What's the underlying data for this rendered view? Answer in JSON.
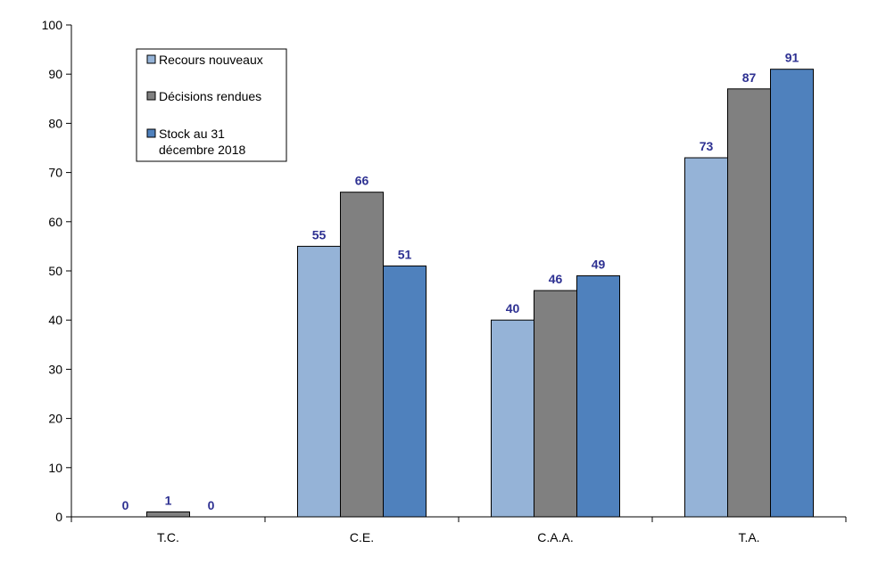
{
  "chart_data": {
    "type": "bar",
    "categories": [
      "T.C.",
      "C.E.",
      "C.A.A.",
      "T.A."
    ],
    "series": [
      {
        "name": "Recours nouveaux",
        "values": [
          0,
          55,
          40,
          73
        ],
        "color": "#95b3d7"
      },
      {
        "name": "Décisions rendues",
        "values": [
          1,
          66,
          46,
          87
        ],
        "color": "#808080"
      },
      {
        "name": "Stock au 31 décembre 2018",
        "name_lines": [
          "Stock au 31",
          "décembre 2018"
        ],
        "values": [
          0,
          51,
          49,
          91
        ],
        "color": "#4f81bd"
      }
    ],
    "ylim": [
      0,
      100
    ],
    "yticks": [
      0,
      10,
      20,
      30,
      40,
      50,
      60,
      70,
      80,
      90,
      100
    ],
    "title": "",
    "xlabel": "",
    "ylabel": "",
    "grid": false,
    "legend_position": "top-left",
    "data_label_color": "#2e3192"
  }
}
